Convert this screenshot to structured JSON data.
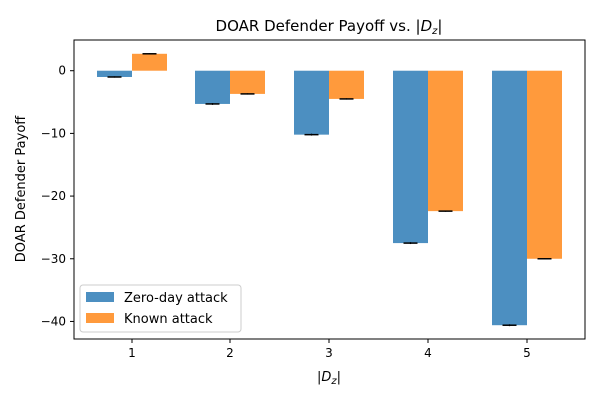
{
  "chart_data": {
    "type": "bar",
    "title": "DOAR Defender Payoff vs. |Dz|",
    "title_prefix": "DOAR Defender Payoff vs. ",
    "xlabel": "|Dz|",
    "ylabel": "DOAR Defender Payoff",
    "categories": [
      "1",
      "2",
      "3",
      "4",
      "5"
    ],
    "ylim": [
      -42.8,
      4.9
    ],
    "yticks": [
      0,
      -10,
      -20,
      -30,
      -40
    ],
    "ytick_labels": [
      "0",
      "−10",
      "−20",
      "−30",
      "−40"
    ],
    "grid": false,
    "legend_position": "lower-left",
    "series": [
      {
        "name": "Zero-day attack",
        "color": "#4c8fc1",
        "values": [
          -1.0,
          -5.3,
          -10.2,
          -27.5,
          -40.6
        ],
        "errors": [
          0.1,
          0.15,
          0.15,
          0.15,
          0.15
        ]
      },
      {
        "name": "Known attack",
        "color": "#ff9a3c",
        "values": [
          2.7,
          -3.7,
          -4.5,
          -22.4,
          -30.0
        ],
        "errors": [
          0.1,
          0.1,
          0.1,
          0.1,
          0.1
        ]
      }
    ]
  }
}
